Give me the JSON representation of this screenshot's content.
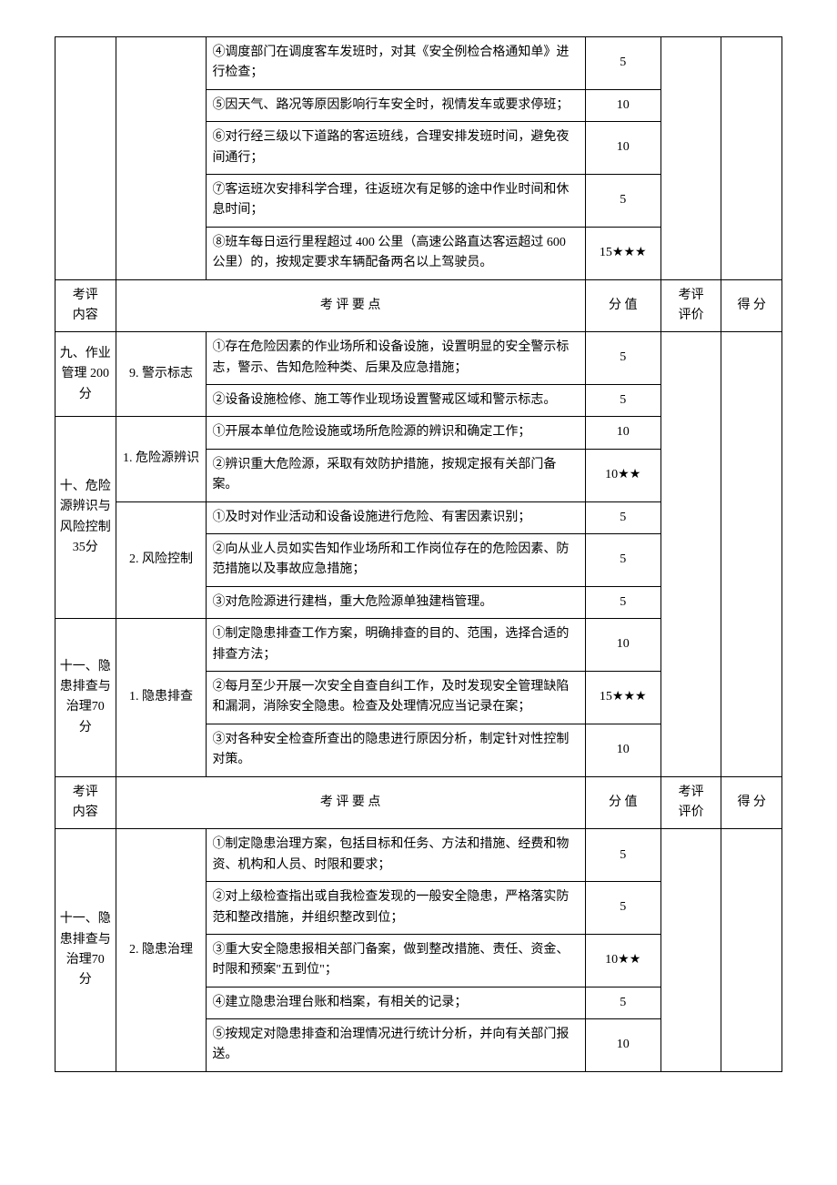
{
  "headers": {
    "category": "考评\n内容",
    "points": "考 评 要 点",
    "score": "分 值",
    "eval": "考评\n评价",
    "get": "得 分"
  },
  "sections": [
    {
      "cat": "",
      "sub": "",
      "rows": [
        {
          "text": "④调度部门在调度客车发班时，对其《安全例检合格通知单》进行检查；",
          "score": "5"
        },
        {
          "text": "⑤因天气、路况等原因影响行车安全时，视情发车或要求停班；",
          "score": "10"
        },
        {
          "text": "⑥对行经三级以下道路的客运班线，合理安排发班时间，避免夜间通行；",
          "score": "10"
        },
        {
          "text": "⑦客运班次安排科学合理，往返班次有足够的途中作业时间和休息时间；",
          "score": "5"
        },
        {
          "text": "⑧班车每日运行里程超过 400 公里（高速公路直达客运超过 600 公里）的，按规定要求车辆配备两名以上驾驶员。",
          "score": "15★★★"
        }
      ]
    }
  ],
  "section9": {
    "cat": "九、作业管理 200分",
    "sub": "9. 警示标志",
    "rows": [
      {
        "text": "①存在危险因素的作业场所和设备设施，设置明显的安全警示标志，警示、告知危险种类、后果及应急措施；",
        "score": "5"
      },
      {
        "text": "②设备设施检修、施工等作业现场设置警戒区域和警示标志。",
        "score": "5"
      }
    ]
  },
  "section10": {
    "cat": "十、危险源辨识与风险控制 35分",
    "subs": [
      {
        "sub": "1. 危险源辨识",
        "rows": [
          {
            "text": "①开展本单位危险设施或场所危险源的辨识和确定工作；",
            "score": "10"
          },
          {
            "text": "②辨识重大危险源，采取有效防护措施，按规定报有关部门备案。",
            "score": "10★★"
          }
        ]
      },
      {
        "sub": "2. 风险控制",
        "rows": [
          {
            "text": "①及时对作业活动和设备设施进行危险、有害因素识别；",
            "score": "5"
          },
          {
            "text": "②向从业人员如实告知作业场所和工作岗位存在的危险因素、防范措施以及事故应急措施；",
            "score": "5"
          },
          {
            "text": "③对危险源进行建档，重大危险源单独建档管理。",
            "score": "5"
          }
        ]
      }
    ]
  },
  "section11a": {
    "cat": "十一、隐患排查与治理70 分",
    "sub": "1. 隐患排查",
    "rows": [
      {
        "text": "①制定隐患排查工作方案，明确排查的目的、范围，选择合适的排查方法；",
        "score": "10"
      },
      {
        "text": "②每月至少开展一次安全自查自纠工作，及时发现安全管理缺陷和漏洞，消除安全隐患。检查及处理情况应当记录在案；",
        "score": "15★★★"
      },
      {
        "text": "③对各种安全检查所查出的隐患进行原因分析，制定针对性控制对策。",
        "score": "10"
      }
    ]
  },
  "section11b": {
    "cat": "十一、隐患排查与治理70 分",
    "sub": "2. 隐患治理",
    "rows": [
      {
        "text": "①制定隐患治理方案，包括目标和任务、方法和措施、经费和物资、机构和人员、时限和要求；",
        "score": "5"
      },
      {
        "text": "②对上级检查指出或自我检查发现的一般安全隐患，严格落实防范和整改措施，并组织整改到位；",
        "score": "5"
      },
      {
        "text": "③重大安全隐患报相关部门备案，做到整改措施、责任、资金、时限和预案\"五到位\"；",
        "score": "10★★"
      },
      {
        "text": "④建立隐患治理台账和档案，有相关的记录；",
        "score": "5"
      },
      {
        "text": "⑤按规定对隐患排查和治理情况进行统计分析，并向有关部门报送。",
        "score": "10"
      }
    ]
  }
}
